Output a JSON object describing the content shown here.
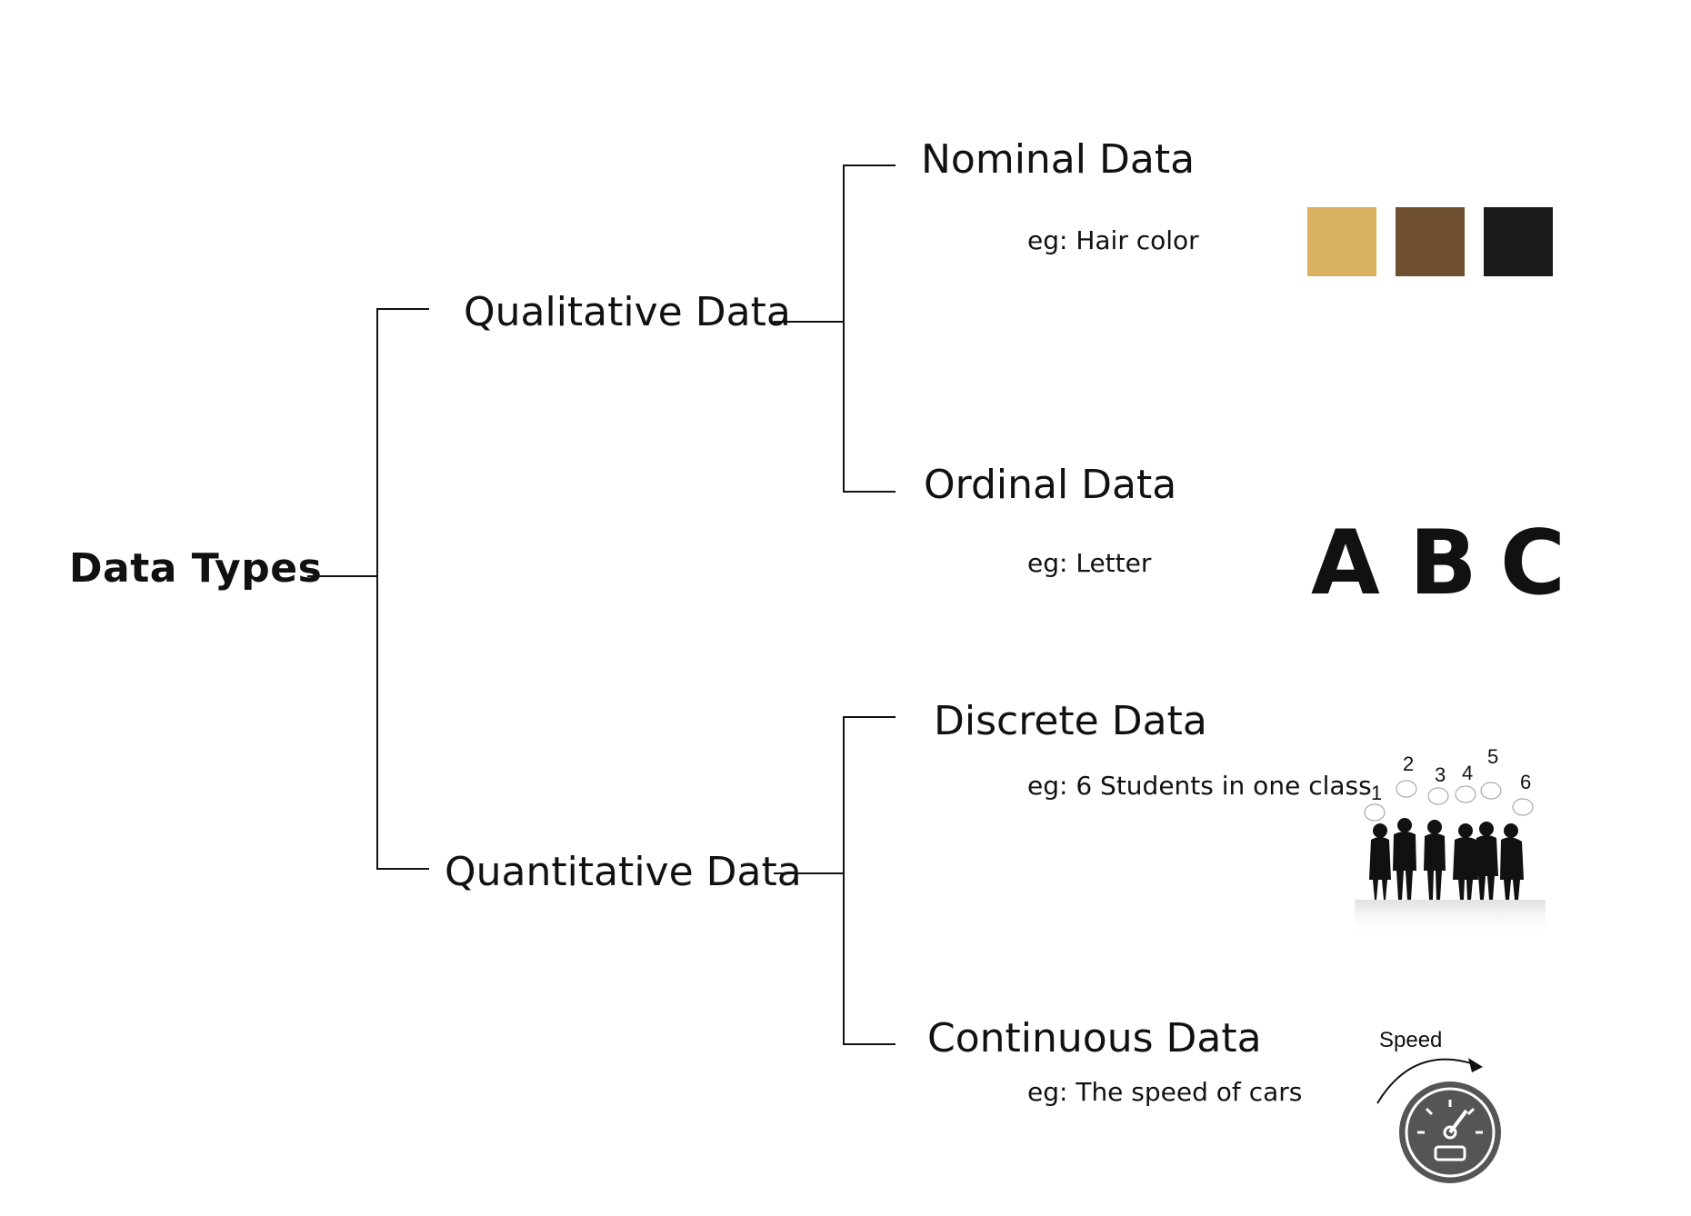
{
  "root": {
    "label": "Data Types"
  },
  "branches": [
    {
      "label": "Qualitative Data",
      "children": [
        {
          "label": "Nominal Data",
          "example": "eg: Hair color",
          "swatches": [
            {
              "name": "blonde",
              "color": "#d9b160"
            },
            {
              "name": "brown",
              "color": "#6e5030"
            },
            {
              "name": "black",
              "color": "#1c1a1a"
            }
          ]
        },
        {
          "label": "Ordinal Data",
          "example": "eg: Letter",
          "letters": [
            "A",
            "B",
            "C"
          ]
        }
      ]
    },
    {
      "label": "Quantitative Data",
      "children": [
        {
          "label": "Discrete Data",
          "example": "eg: 6 Students in one class",
          "counts": [
            "1",
            "2",
            "3",
            "4",
            "5",
            "6"
          ]
        },
        {
          "label": "Continuous Data",
          "example": "eg: The speed of cars",
          "gauge_caption": "Speed"
        }
      ]
    }
  ]
}
